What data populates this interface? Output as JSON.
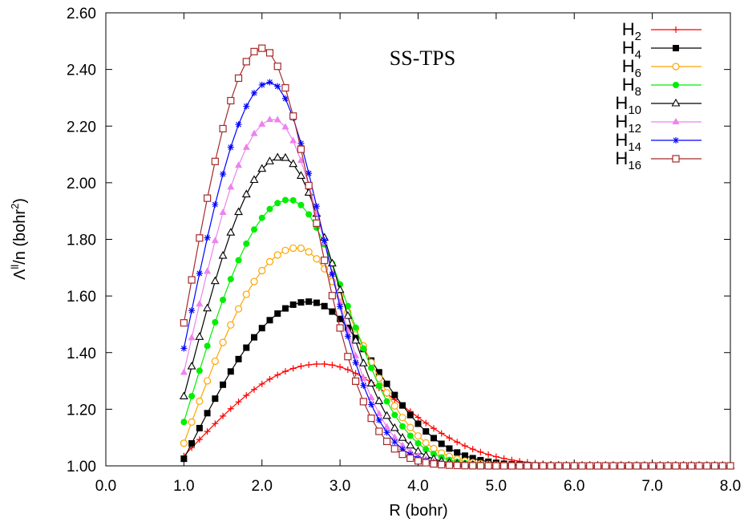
{
  "chart_data": {
    "type": "line",
    "title": "",
    "annotation": "SS-TPS",
    "xlabel": "R (bohr)",
    "ylabel": {
      "base": "Λ",
      "sup": "ll",
      "rest": "/n (bohr",
      "sup2": "2",
      "end": ")"
    },
    "xlim": [
      0.0,
      8.0
    ],
    "ylim": [
      1.0,
      2.6
    ],
    "xticks": [
      "0.0",
      "1.0",
      "2.0",
      "3.0",
      "4.0",
      "5.0",
      "6.0",
      "7.0",
      "8.0"
    ],
    "yticks": [
      "1.00",
      "1.20",
      "1.40",
      "1.60",
      "1.80",
      "2.00",
      "2.20",
      "2.40",
      "2.60"
    ],
    "grid": false,
    "legend_position": "top-right",
    "series": [
      {
        "name": "H2",
        "sub": "2",
        "color": "#ff0000",
        "marker": "plus",
        "R0": 1.0,
        "Rstep": 0.1,
        "Rmax": 8.0,
        "peak_x": 2.75,
        "peak_y": 1.36,
        "start_y": 1.035,
        "tail_width": 1.45
      },
      {
        "name": "H4",
        "sub": "4",
        "color": "#000000",
        "marker": "filled-square",
        "R0": 1.0,
        "Rstep": 0.1,
        "Rmax": 8.0,
        "peak_x": 2.6,
        "peak_y": 1.58,
        "start_y": 1.025,
        "tail_width": 1.2
      },
      {
        "name": "H6",
        "sub": "6",
        "color": "#ffa500",
        "marker": "open-circle",
        "R0": 1.0,
        "Rstep": 0.1,
        "Rmax": 8.0,
        "peak_x": 2.45,
        "peak_y": 1.77,
        "start_y": 1.08,
        "tail_width": 1.1
      },
      {
        "name": "H8",
        "sub": "8",
        "color": "#00ee00",
        "marker": "filled-circle",
        "R0": 1.0,
        "Rstep": 0.1,
        "Rmax": 8.0,
        "peak_x": 2.35,
        "peak_y": 1.94,
        "start_y": 1.155,
        "tail_width": 1.05
      },
      {
        "name": "H10",
        "sub": "10",
        "color": "#000000",
        "marker": "open-triangle",
        "R0": 1.0,
        "Rstep": 0.1,
        "Rmax": 8.0,
        "peak_x": 2.25,
        "peak_y": 2.09,
        "start_y": 1.245,
        "tail_width": 1.0
      },
      {
        "name": "H12",
        "sub": "12",
        "color": "#ee82ee",
        "marker": "filled-triangle",
        "R0": 1.0,
        "Rstep": 0.1,
        "Rmax": 8.0,
        "peak_x": 2.15,
        "peak_y": 2.225,
        "start_y": 1.33,
        "tail_width": 0.98
      },
      {
        "name": "H14",
        "sub": "14",
        "color": "#0000ff",
        "marker": "star",
        "R0": 1.0,
        "Rstep": 0.1,
        "Rmax": 8.0,
        "peak_x": 2.1,
        "peak_y": 2.355,
        "start_y": 1.415,
        "tail_width": 0.96
      },
      {
        "name": "H16",
        "sub": "16",
        "color": "#a52a2a",
        "marker": "open-square",
        "R0": 1.0,
        "Rstep": 0.1,
        "Rmax": 8.0,
        "peak_x": 2.0,
        "peak_y": 2.475,
        "start_y": 1.505,
        "tail_width": 0.95
      }
    ]
  }
}
